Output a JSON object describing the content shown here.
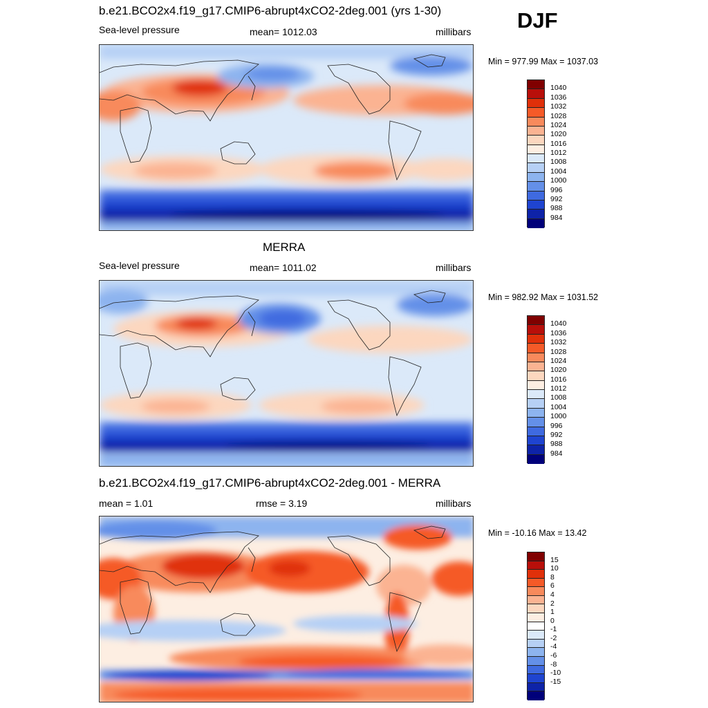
{
  "season": "DJF",
  "colors": {
    "abs_scale": [
      "#800000",
      "#b80f0a",
      "#e0300a",
      "#f55a28",
      "#f88a5c",
      "#fbb392",
      "#fcd7bf",
      "#fdeee2",
      "#dbe9f9",
      "#b6d0f5",
      "#8db4ef",
      "#6490e8",
      "#3f6ae0",
      "#1f44d0",
      "#0e23a8",
      "#00007a"
    ],
    "diff_scale": [
      "#800000",
      "#b80f0a",
      "#e0300a",
      "#f55a28",
      "#f88a5c",
      "#fbb392",
      "#fcd7bf",
      "#fdeee2",
      "#ffffff",
      "#dbe9f9",
      "#b6d0f5",
      "#8db4ef",
      "#6490e8",
      "#3f6ae0",
      "#1f44d0",
      "#0e23a8",
      "#00007a"
    ]
  },
  "panels": [
    {
      "title": "b.e21.BCO2x4.f19_g17.CMIP6-abrupt4xCO2-2deg.001 (yrs 1-30)",
      "left_label": "Sea-level pressure",
      "center_label": "mean= 1012.03",
      "right_label": "millibars",
      "minmax": "Min = 977.99 Max = 1037.03",
      "colorbar_labels": [
        "1040",
        "1036",
        "1032",
        "1028",
        "1024",
        "1020",
        "1016",
        "1012",
        "1008",
        "1004",
        "1000",
        "996",
        "992",
        "988",
        "984"
      ]
    },
    {
      "title": "MERRA",
      "left_label": "Sea-level pressure",
      "center_label": "mean= 1011.02",
      "right_label": "millibars",
      "minmax": "Min = 982.92 Max = 1031.52",
      "colorbar_labels": [
        "1040",
        "1036",
        "1032",
        "1028",
        "1024",
        "1020",
        "1016",
        "1012",
        "1008",
        "1004",
        "1000",
        "996",
        "992",
        "988",
        "984"
      ]
    },
    {
      "title": "b.e21.BCO2x4.f19_g17.CMIP6-abrupt4xCO2-2deg.001 - MERRA",
      "left_label": "mean =   1.01",
      "center_label": "rmse =   3.19",
      "right_label": "millibars",
      "minmax": "Min = -10.16 Max =  13.42",
      "colorbar_labels": [
        "15",
        "10",
        "8",
        "6",
        "4",
        "2",
        "1",
        "0",
        "-1",
        "-2",
        "-4",
        "-6",
        "-8",
        "-10",
        "-15"
      ]
    }
  ]
}
